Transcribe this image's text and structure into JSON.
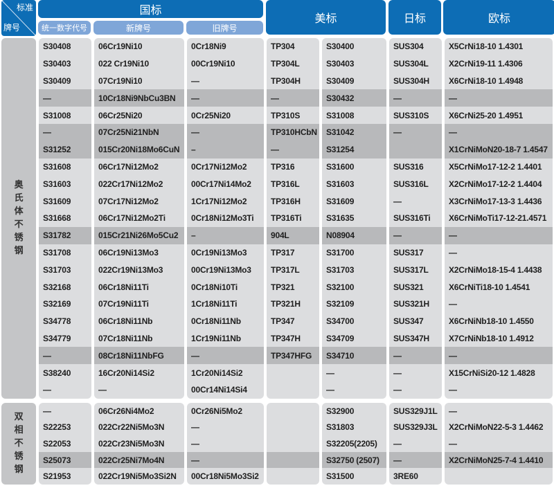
{
  "corner": {
    "top_right": "标准",
    "bottom_left": "牌号"
  },
  "header": {
    "gb": "国标",
    "gb_sub": [
      "统一数字代号",
      "新牌号",
      "旧牌号"
    ],
    "us": "美标",
    "jis": "日标",
    "en": "欧标"
  },
  "colors": {
    "header_blue": "#0d6db5",
    "subheader_blue": "#7fa6d8",
    "cell_light": "#dcdddf",
    "cell_highlight": "#b8b9bb"
  },
  "sections": [
    {
      "category": "奥氏体不锈钢",
      "rows": [
        {
          "cells": [
            "S30408",
            "06Cr19Ni10",
            "0Cr18Ni9",
            "TP304",
            "S30400",
            "SUS304",
            "X5CrNi18-10 1.4301"
          ]
        },
        {
          "cells": [
            "S30403",
            "022 Cr19Ni10",
            "00Cr19Ni10",
            "TP304L",
            "S30403",
            "SUS304L",
            "X2CrNi19-11  1.4306"
          ]
        },
        {
          "cells": [
            "S30409",
            "07Cr19Ni10",
            "—",
            "TP304H",
            "S30409",
            "SUS304H",
            "X6CrNi18-10  1.4948"
          ]
        },
        {
          "cells": [
            "—",
            "10Cr18Ni9NbCu3BN",
            "—",
            "—",
            "S30432",
            "—",
            "—"
          ],
          "highlight": true
        },
        {
          "cells": [
            "S31008",
            "06Cr25Ni20",
            "0Cr25Ni20",
            "TP310S",
            "S31008",
            "SUS310S",
            "X6CrNi25-20 1.4951"
          ]
        },
        {
          "cells": [
            "—",
            "07Cr25Ni21NbN",
            "—",
            "TP310HCbN",
            "S31042",
            "—",
            "—"
          ],
          "highlight": true
        },
        {
          "cells": [
            "S31252",
            "015Cr20Ni18Mo6CuN",
            "–",
            "—",
            "S31254",
            "",
            "X1CrNiMoN20-18-7 1.4547"
          ],
          "highlight": true
        },
        {
          "cells": [
            "S31608",
            "06Cr17Ni12Mo2",
            "0Cr17Ni12Mo2",
            "TP316",
            "S31600",
            "SUS316",
            "X5CrNiMo17-12-2 1.4401"
          ]
        },
        {
          "cells": [
            "S31603",
            "022Cr17Ni12Mo2",
            "00Cr17Ni14Mo2",
            "TP316L",
            "S31603",
            "SUS316L",
            "X2CrNiMo17-12-2 1.4404"
          ]
        },
        {
          "cells": [
            "S31609",
            "07Cr17Ni12Mo2",
            "1Cr17Ni12Mo2",
            "TP316H",
            "S31609",
            "—",
            "X3CrNiMo17-13-3 1.4436"
          ]
        },
        {
          "cells": [
            "S31668",
            "06Cr17Ni12Mo2Ti",
            "0Cr18Ni12Mo3Ti",
            "TP316Ti",
            "S31635",
            "SUS316Ti",
            "X6CrNiMoTi17-12-21.4571"
          ]
        },
        {
          "cells": [
            "S31782",
            "015Cr21Ni26Mo5Cu2",
            "–",
            "904L",
            "N08904",
            "—",
            "—"
          ],
          "highlight": true
        },
        {
          "cells": [
            "S31708",
            "06Cr19Ni13Mo3",
            "0Cr19Ni13Mo3",
            "TP317",
            "S31700",
            "SUS317",
            "—"
          ]
        },
        {
          "cells": [
            "S31703",
            "022Cr19Ni13Mo3",
            "00Cr19Ni13Mo3",
            "TP317L",
            "S31703",
            "SUS317L",
            "X2CrNiMo18-15-4 1.4438"
          ]
        },
        {
          "cells": [
            "S32168",
            "06Cr18Ni11Ti",
            "0Cr18Ni10Ti",
            "TP321",
            "S32100",
            "SUS321",
            "X6CrNiTi18-10 1.4541"
          ]
        },
        {
          "cells": [
            "S32169",
            "07Cr19Ni11Ti",
            "1Cr18Ni11Ti",
            "TP321H",
            "S32109",
            "SUS321H",
            "—"
          ]
        },
        {
          "cells": [
            "S34778",
            "06Cr18Ni11Nb",
            "0Cr18Ni11Nb",
            "TP347",
            "S34700",
            "SUS347",
            "X6CrNiNb18-10 1.4550"
          ]
        },
        {
          "cells": [
            "S34779",
            "07Cr18Ni11Nb",
            "1Cr19Ni11Nb",
            "TP347H",
            "S34709",
            "SUS347H",
            "X7CrNiNb18-10 1.4912"
          ]
        },
        {
          "cells": [
            "—",
            "08Cr18Ni11NbFG",
            "—",
            "TP347HFG",
            "S34710",
            "—",
            "—"
          ],
          "highlight": true
        },
        {
          "cells": [
            "S38240",
            "16Cr20Ni14Si2",
            "1Cr20Ni14Si2",
            "",
            "—",
            "—",
            "X15CrNiSi20-12 1.4828"
          ]
        },
        {
          "cells": [
            "—",
            "—",
            "00Cr14Ni14Si4",
            "",
            "—",
            "—",
            "—"
          ]
        }
      ]
    },
    {
      "category": "双相不锈钢",
      "rows": [
        {
          "cells": [
            "—",
            "06Cr26Ni4Mo2",
            "0Cr26Ni5Mo2",
            "",
            "S32900",
            "SUS329J1L",
            "—"
          ]
        },
        {
          "cells": [
            "S22253",
            "022Cr22Ni5Mo3N",
            "—",
            "",
            "S31803",
            "SUS329J3L",
            "X2CrNiMoN22-5-3 1.4462"
          ]
        },
        {
          "cells": [
            "S22053",
            "022Cr23Ni5Mo3N",
            "—",
            "",
            "S32205(2205)",
            "—",
            "—"
          ]
        },
        {
          "cells": [
            "S25073",
            "022Cr25Ni7Mo4N",
            "—",
            "",
            "S32750 (2507)",
            "—",
            "X2CrNiMoN25-7-4 1.4410"
          ],
          "highlight": true
        },
        {
          "cells": [
            "S21953",
            "022Cr19Ni5Mo3Si2N",
            "00Cr18Ni5Mo3Si2",
            "",
            "S31500",
            "3RE60",
            ""
          ]
        }
      ]
    }
  ]
}
